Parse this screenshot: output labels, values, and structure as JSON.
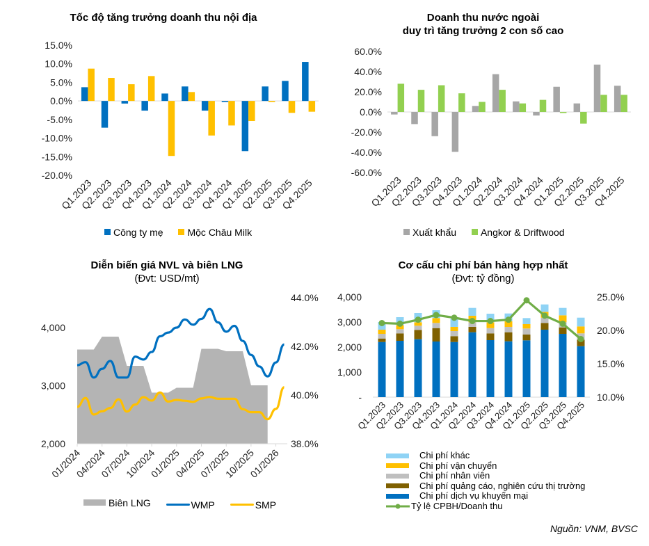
{
  "source_note": "Nguồn: VNM, BVSC",
  "chart_data": [
    {
      "id": "domestic",
      "type": "bar",
      "title": "Tốc độ tăng trưởng doanh thu nội địa",
      "subtitle": "",
      "categories": [
        "Q1.2023",
        "Q2.2023",
        "Q3.2023",
        "Q4.2023",
        "Q1.2024",
        "Q2.2024",
        "Q3.2024",
        "Q4.2024",
        "Q1.2025",
        "Q2.2025",
        "Q3.2025",
        "Q4.2025"
      ],
      "series": [
        {
          "name": "Công ty mẹ",
          "color": "#0070C0",
          "values": [
            3.7,
            -7.2,
            -0.7,
            -2.6,
            2.0,
            3.9,
            -2.6,
            -0.3,
            -13.5,
            3.9,
            5.4,
            10.5
          ]
        },
        {
          "name": "Mộc Châu Milk",
          "color": "#FFC000",
          "values": [
            8.7,
            6.2,
            4.5,
            6.7,
            -14.8,
            2.4,
            -9.3,
            -6.6,
            -5.4,
            -0.3,
            -3.2,
            -2.9
          ]
        }
      ],
      "ylim": [
        -20,
        15
      ],
      "yticks": [
        15,
        10,
        5,
        0,
        -5,
        -10,
        -15,
        -20
      ],
      "ytick_labels": [
        "15.0%",
        "10.0%",
        "5.0%",
        "0.0%",
        "-5.0%",
        "-10.0%",
        "-15.0%",
        "-20.0%"
      ],
      "legend": "bottom",
      "grid": false
    },
    {
      "id": "foreign",
      "type": "bar",
      "title": "Doanh thu nước ngoài",
      "subtitle": "duy trì tăng trưởng 2 con số cao",
      "categories": [
        "Q1.2023",
        "Q2.2023",
        "Q3.2023",
        "Q4.2023",
        "Q1.2024",
        "Q2.2024",
        "Q3.2024",
        "Q4.2024",
        "Q1.2025",
        "Q2.2025",
        "Q3.2025",
        "Q4.2025"
      ],
      "series": [
        {
          "name": "Xuất khẩu",
          "color": "#A6A6A6",
          "values": [
            -2.5,
            -12,
            -24,
            -39.5,
            6,
            37.5,
            10.5,
            -3.5,
            25,
            8.5,
            47,
            26
          ]
        },
        {
          "name": "Angkor & Driftwood",
          "color": "#92D050",
          "values": [
            28,
            22,
            26.5,
            18.5,
            10,
            22,
            8.5,
            12,
            -1,
            -11.5,
            17,
            17
          ]
        }
      ],
      "ylim": [
        -60,
        60
      ],
      "yticks": [
        60,
        40,
        20,
        0,
        -20,
        -40,
        -60
      ],
      "ytick_labels": [
        "60.0%",
        "40.0%",
        "20.0%",
        "0.0%",
        "-20.0%",
        "-40.0%",
        "-60.0%"
      ],
      "legend": "bottom",
      "grid": false
    },
    {
      "id": "materials",
      "type": "line",
      "title": "Diễn biến giá NVL và biên LNG",
      "subtitle": "(Đvt: USD/mt)",
      "x_months": [
        "01/2024",
        "02/2024",
        "03/2024",
        "04/2024",
        "05/2024",
        "06/2024",
        "07/2024",
        "08/2024",
        "09/2024",
        "10/2024",
        "11/2024",
        "12/2024",
        "01/2025",
        "02/2025",
        "03/2025",
        "04/2025",
        "05/2025",
        "06/2025",
        "07/2025",
        "08/2025",
        "09/2025",
        "10/2025",
        "11/2025",
        "12/2025",
        "01/2026",
        "02/2026"
      ],
      "xtick_labels": [
        "01/2024",
        "04/2024",
        "07/2024",
        "10/2024",
        "01/2025",
        "04/2025",
        "07/2025",
        "10/2025",
        "01/2026"
      ],
      "series": [
        {
          "name": "Biên LNG",
          "type": "area",
          "axis": "right",
          "color": "#B4B4B4",
          "values": [
            41.87,
            41.87,
            41.87,
            42.4,
            42.4,
            42.4,
            41.2,
            41.2,
            41.2,
            40.1,
            40.1,
            40.1,
            40.3,
            40.3,
            40.3,
            41.9,
            41.9,
            41.9,
            41.8,
            41.8,
            41.8,
            40.4,
            40.4,
            40.4,
            null,
            null
          ]
        },
        {
          "name": "WMP",
          "type": "line",
          "axis": "left",
          "color": "#0070C0",
          "values": [
            3353,
            3405,
            3140,
            3290,
            3425,
            3140,
            3140,
            3500,
            3450,
            3580,
            3850,
            3915,
            4000,
            4140,
            4050,
            4150,
            4320,
            4090,
            3930,
            4030,
            3770,
            3530,
            3330,
            3160,
            3400,
            3710
          ]
        },
        {
          "name": "SMP",
          "type": "line",
          "axis": "left",
          "color": "#FFC000",
          "values": [
            2635,
            2787,
            2503,
            2560,
            2615,
            2766,
            2555,
            2675,
            2802,
            2743,
            2882,
            2727,
            2755,
            2740,
            2722,
            2780,
            2806,
            2775,
            2775,
            2775,
            2595,
            2543,
            2543,
            2423,
            2600,
            2973
          ]
        }
      ],
      "ylim_left": [
        2000,
        4500
      ],
      "yticks_left": [
        2000,
        3000,
        4000
      ],
      "ytick_labels_left": [
        "2,000",
        "3,000",
        "4,000"
      ],
      "ylim_right": [
        38,
        44
      ],
      "yticks_right": [
        38,
        40,
        42,
        44
      ],
      "ytick_labels_right": [
        "38.0%",
        "40.0%",
        "42.0%",
        "44.0%"
      ],
      "legend": "bottom",
      "grid": false
    },
    {
      "id": "selling_cost",
      "type": "bar",
      "stacked": true,
      "title": "Cơ cấu chi phí bán hàng hợp nhất",
      "subtitle": "(Đvt: tỷ đồng)",
      "categories": [
        "Q1.2023",
        "Q2.2023",
        "Q3.2023",
        "Q4.2023",
        "Q1.2024",
        "Q2.2024",
        "Q3.2024",
        "Q4.2024",
        "Q1.2025",
        "Q2.2025",
        "Q3.2025",
        "Q4.2025"
      ],
      "series": [
        {
          "name": "Chi phí dịch vụ khuyến mại",
          "color": "#0070C0",
          "values": [
            2203,
            2250,
            2314,
            2222,
            2203,
            2592,
            2278,
            2231,
            2269,
            2694,
            2528,
            2036
          ]
        },
        {
          "name": "Chi phí quảng cáo, nghiên cứu thị trường",
          "color": "#7F6000",
          "values": [
            139,
            297,
            372,
            536,
            233,
            214,
            269,
            361,
            231,
            270,
            258,
            261
          ]
        },
        {
          "name": "Chi phí nhân viên",
          "color": "#BFBFBF",
          "values": [
            186,
            167,
            167,
            206,
            203,
            186,
            211,
            214,
            242,
            211,
            206,
            250
          ]
        },
        {
          "name": "Chi phí vận chuyển",
          "color": "#FFC000",
          "values": [
            166,
            166,
            139,
            194,
            167,
            258,
            234,
            230,
            175,
            233,
            277,
            278
          ]
        },
        {
          "name": "Chi phí khác",
          "color": "#8FD3F5",
          "values": [
            306,
            314,
            369,
            314,
            324,
            314,
            341,
            306,
            241,
            295,
            295,
            350
          ]
        }
      ],
      "line_series": {
        "name": "Tỷ lệ CPBH/Doanh thu",
        "color": "#70AD47",
        "axis": "right",
        "values": [
          21.1,
          21.0,
          21.6,
          22.3,
          21.9,
          21.4,
          21.4,
          21.6,
          24.5,
          22.2,
          21.0,
          18.7
        ]
      },
      "ylim_left": [
        0,
        4000
      ],
      "yticks_left": [
        0,
        1000,
        2000,
        3000,
        4000
      ],
      "ytick_labels_left": [
        "-",
        "1,000",
        "2,000",
        "3,000",
        "4,000"
      ],
      "ylim_right": [
        10,
        25
      ],
      "yticks_right": [
        10,
        15,
        20,
        25
      ],
      "ytick_labels_right": [
        "10.0%",
        "15.0%",
        "20.0%",
        "25.0%"
      ],
      "legend": "bottom",
      "grid": false
    }
  ]
}
